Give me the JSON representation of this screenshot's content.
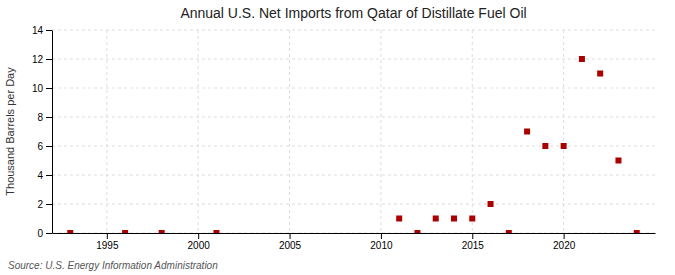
{
  "chart_data": {
    "type": "scatter",
    "title": "Annual U.S. Net Imports from Qatar of Distillate Fuel Oil",
    "ylabel": "Thousand Barrels per Day",
    "annotation": "Source: U.S. Energy Information Administration",
    "x": [
      1993,
      1996,
      1998,
      2001,
      2011,
      2012,
      2013,
      2014,
      2015,
      2016,
      2017,
      2018,
      2019,
      2020,
      2021,
      2022,
      2023,
      2024
    ],
    "values": [
      0,
      0,
      0,
      0,
      1,
      0,
      1,
      1,
      1,
      2,
      0,
      7,
      6,
      6,
      12,
      11,
      5,
      0
    ],
    "color": "#aa0000",
    "marker": "square",
    "xlim": [
      1992,
      2025
    ],
    "ylim": [
      0,
      14
    ],
    "xticks": [
      1995,
      2000,
      2005,
      2010,
      2015,
      2020
    ],
    "yticks": [
      0,
      2,
      4,
      6,
      8,
      10,
      12,
      14
    ],
    "grid": true
  }
}
